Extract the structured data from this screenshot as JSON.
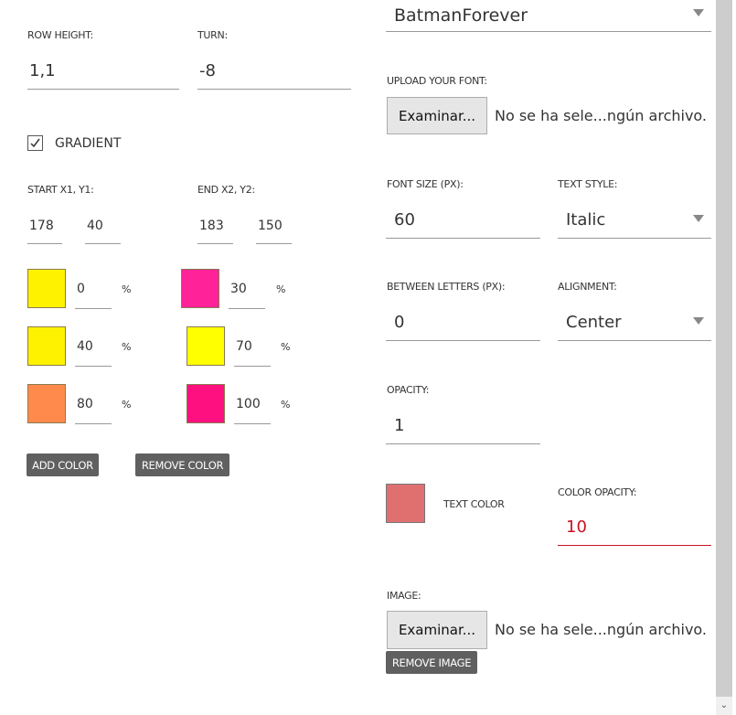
{
  "left": {
    "row_height": {
      "label": "ROW HEIGHT:",
      "value": "1,1"
    },
    "turn": {
      "label": "TURN:",
      "value": "-8"
    },
    "gradient": {
      "label": "GRADIENT",
      "checked": true
    },
    "start": {
      "label": "START X1, Y1:",
      "x": "178",
      "y": "40"
    },
    "end": {
      "label": "END X2, Y2:",
      "x": "183",
      "y": "150"
    },
    "stops": [
      {
        "color": "#fff200",
        "value": "0"
      },
      {
        "color": "#ff2299",
        "value": "30"
      },
      {
        "color": "#fff200",
        "value": "40"
      },
      {
        "color": "#ffff00",
        "value": "70"
      },
      {
        "color": "#ff8a4c",
        "value": "80"
      },
      {
        "color": "#ff1080",
        "value": "100"
      }
    ],
    "percent": "%",
    "add_color": "ADD COLOR",
    "remove_color": "REMOVE COLOR"
  },
  "right": {
    "font_value": "BatmanForever",
    "upload_label": "UPLOAD YOUR FONT:",
    "browse": "Examinar...",
    "no_file": "No se ha sele...ngún archivo.",
    "font_size": {
      "label": "FONT SIZE (PX):",
      "value": "60"
    },
    "text_style": {
      "label": "TEXT STYLE:",
      "value": "Italic"
    },
    "between_letters": {
      "label": "BETWEEN LETTERS (PX):",
      "value": "0"
    },
    "alignment": {
      "label": "ALIGNMENT:",
      "value": "Center"
    },
    "opacity": {
      "label": "OPACITY:",
      "value": "1"
    },
    "text_color": {
      "label": "TEXT COLOR",
      "color": "#e07070"
    },
    "color_opacity": {
      "label": "COLOR OPACITY:",
      "value": "10",
      "error_color": "#cc1122"
    },
    "image_label": "IMAGE:",
    "image_browse": "Examinar...",
    "image_no_file": "No se ha sele...ngún archivo.",
    "remove_image": "REMOVE IMAGE"
  }
}
